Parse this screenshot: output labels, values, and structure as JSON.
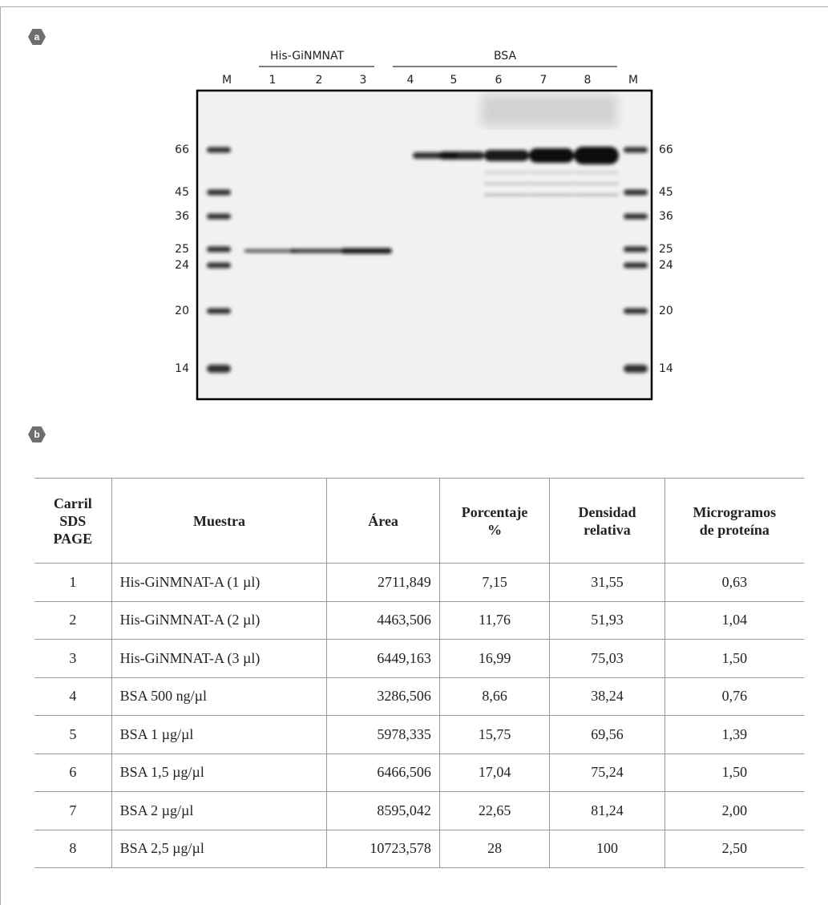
{
  "panel_a": {
    "label": "a",
    "groups": [
      {
        "label": "His-GiNMNAT"
      },
      {
        "label": "BSA"
      }
    ],
    "lanes": [
      "M",
      "1",
      "2",
      "3",
      "4",
      "5",
      "6",
      "7",
      "8",
      "M"
    ],
    "markers_left": [
      "66",
      "45",
      "36",
      "25",
      "24",
      "20",
      "14"
    ],
    "markers_right": [
      "66",
      "45",
      "36",
      "25",
      "24",
      "20",
      "14"
    ]
  },
  "panel_b": {
    "label": "b",
    "table": {
      "header": [
        "Carril\nSDS\nPAGE",
        "Muestra",
        "Área",
        "Porcentaje\n%",
        "Densidad\nrelativa",
        "Microgramos\nde proteína"
      ],
      "rows": [
        [
          "1",
          "His-GiNMNAT-A (1 µl)",
          "2711,849",
          "7,15",
          "31,55",
          "0,63"
        ],
        [
          "2",
          "His-GiNMNAT-A (2 µl)",
          "4463,506",
          "11,76",
          "51,93",
          "1,04"
        ],
        [
          "3",
          "His-GiNMNAT-A (3 µl)",
          "6449,163",
          "16,99",
          "75,03",
          "1,50"
        ],
        [
          "4",
          "BSA 500 ng/µl",
          "3286,506",
          "8,66",
          "38,24",
          "0,76"
        ],
        [
          "5",
          "BSA 1 µg/µl",
          "5978,335",
          "15,75",
          "69,56",
          "1,39"
        ],
        [
          "6",
          "BSA 1,5 µg/µl",
          "6466,506",
          "17,04",
          "75,24",
          "1,50"
        ],
        [
          "7",
          "BSA 2 µg/µl",
          "8595,042",
          "22,65",
          "81,24",
          "2,00"
        ],
        [
          "8",
          "BSA 2,5 µg/µl",
          "10723,578",
          "28",
          "100",
          "2,50"
        ]
      ]
    }
  }
}
